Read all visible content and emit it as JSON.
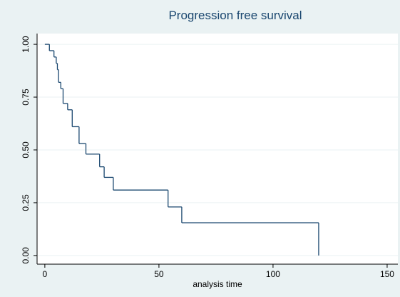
{
  "chart_data": {
    "type": "step",
    "title": "Progression free survival",
    "x_label": "analysis time",
    "x": [
      0,
      2,
      4,
      5,
      5.5,
      6,
      7,
      8,
      10,
      12,
      15,
      18,
      24,
      26,
      30,
      54,
      60,
      120
    ],
    "values": [
      1.0,
      0.97,
      0.94,
      0.91,
      0.88,
      0.82,
      0.79,
      0.72,
      0.69,
      0.61,
      0.53,
      0.48,
      0.42,
      0.37,
      0.31,
      0.23,
      0.155,
      0
    ],
    "color": "#1a476f",
    "xlim": [
      -3.4,
      154.7
    ],
    "ylim": [
      -0.041,
      1.051
    ],
    "xticks": [
      0,
      50,
      100,
      150
    ],
    "yticks": [
      {
        "value": 0,
        "label": "0.00"
      },
      {
        "value": 0.25,
        "label": "0.25"
      },
      {
        "value": 0.5,
        "label": "0.50"
      },
      {
        "value": 0.75,
        "label": "0.75"
      },
      {
        "value": 1,
        "label": "1.00"
      }
    ],
    "grid": true
  }
}
